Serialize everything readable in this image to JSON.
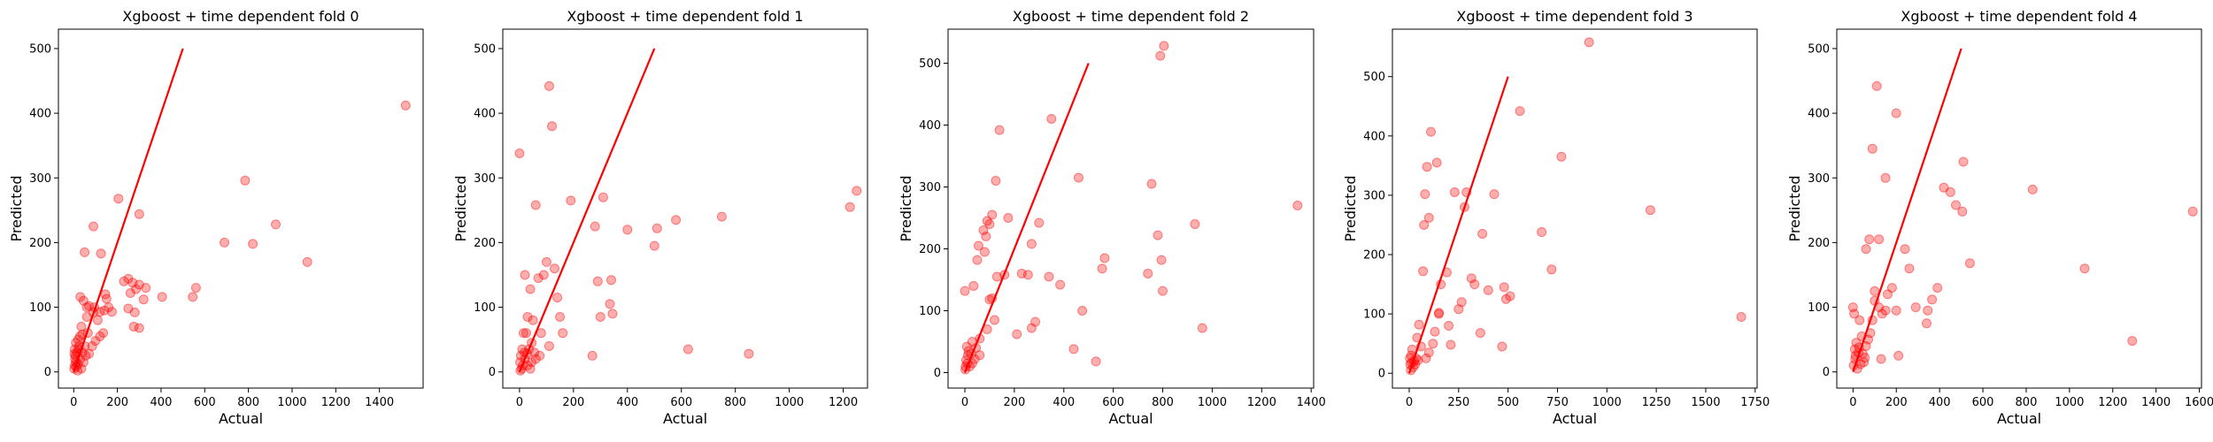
{
  "chart_data": [
    {
      "type": "scatter",
      "title": "Xgboost + time dependent fold 0",
      "xlabel": "Actual",
      "ylabel": "Predicted",
      "xlim": [
        -70,
        1600
      ],
      "ylim": [
        -25,
        530
      ],
      "xticks": [
        0,
        200,
        400,
        600,
        800,
        1000,
        1200,
        1400
      ],
      "yticks": [
        0,
        100,
        200,
        300,
        400,
        500
      ],
      "reference_line": {
        "from": [
          0,
          0
        ],
        "to": [
          500,
          500
        ],
        "color": "#ff0000"
      },
      "point_color": "#ff0000",
      "points": [
        [
          1520,
          412
        ],
        [
          785,
          296
        ],
        [
          925,
          228
        ],
        [
          1070,
          170
        ],
        [
          820,
          198
        ],
        [
          690,
          200
        ],
        [
          560,
          130
        ],
        [
          545,
          116
        ],
        [
          405,
          116
        ],
        [
          330,
          130
        ],
        [
          300,
          244
        ],
        [
          205,
          268
        ],
        [
          230,
          140
        ],
        [
          250,
          144
        ],
        [
          270,
          138
        ],
        [
          300,
          135
        ],
        [
          285,
          128
        ],
        [
          260,
          122
        ],
        [
          320,
          112
        ],
        [
          250,
          98
        ],
        [
          280,
          92
        ],
        [
          300,
          68
        ],
        [
          275,
          70
        ],
        [
          160,
          100
        ],
        [
          150,
          113
        ],
        [
          145,
          120
        ],
        [
          175,
          93
        ],
        [
          140,
          95
        ],
        [
          120,
          93
        ],
        [
          90,
          92
        ],
        [
          135,
          60
        ],
        [
          120,
          55
        ],
        [
          100,
          48
        ],
        [
          85,
          40
        ],
        [
          110,
          80
        ],
        [
          95,
          100
        ],
        [
          70,
          102
        ],
        [
          45,
          110
        ],
        [
          30,
          116
        ],
        [
          60,
          100
        ],
        [
          90,
          225
        ],
        [
          50,
          185
        ],
        [
          125,
          183
        ],
        [
          60,
          85
        ],
        [
          65,
          60
        ],
        [
          40,
          58
        ],
        [
          35,
          70
        ],
        [
          20,
          50
        ],
        [
          10,
          45
        ],
        [
          5,
          35
        ],
        [
          25,
          40
        ],
        [
          15,
          30
        ],
        [
          8,
          25
        ],
        [
          30,
          20
        ],
        [
          20,
          12
        ],
        [
          10,
          15
        ],
        [
          5,
          10
        ],
        [
          2,
          5
        ],
        [
          12,
          8
        ],
        [
          40,
          30
        ],
        [
          55,
          25
        ],
        [
          45,
          15
        ],
        [
          18,
          2
        ],
        [
          6,
          20
        ],
        [
          3,
          28
        ],
        [
          28,
          55
        ],
        [
          50,
          40
        ],
        [
          70,
          28
        ],
        [
          22,
          35
        ],
        [
          35,
          5
        ]
      ]
    },
    {
      "type": "scatter",
      "title": "Xgboost + time dependent fold 1",
      "xlabel": "Actual",
      "ylabel": "Predicted",
      "xlim": [
        -62,
        1290
      ],
      "ylim": [
        -25,
        530
      ],
      "xticks": [
        0,
        200,
        400,
        600,
        800,
        1000,
        1200
      ],
      "yticks": [
        0,
        100,
        200,
        300,
        400,
        500
      ],
      "reference_line": {
        "from": [
          0,
          0
        ],
        "to": [
          500,
          500
        ],
        "color": "#ff0000"
      },
      "point_color": "#ff0000",
      "points": [
        [
          1250,
          280
        ],
        [
          1225,
          255
        ],
        [
          850,
          28
        ],
        [
          750,
          240
        ],
        [
          625,
          35
        ],
        [
          580,
          235
        ],
        [
          510,
          222
        ],
        [
          500,
          195
        ],
        [
          400,
          220
        ],
        [
          340,
          142
        ],
        [
          335,
          105
        ],
        [
          345,
          90
        ],
        [
          310,
          270
        ],
        [
          280,
          225
        ],
        [
          290,
          140
        ],
        [
          300,
          85
        ],
        [
          270,
          25
        ],
        [
          190,
          265
        ],
        [
          140,
          115
        ],
        [
          130,
          160
        ],
        [
          120,
          380
        ],
        [
          110,
          442
        ],
        [
          60,
          258
        ],
        [
          0,
          338
        ],
        [
          150,
          85
        ],
        [
          160,
          60
        ],
        [
          100,
          170
        ],
        [
          90,
          150
        ],
        [
          70,
          145
        ],
        [
          50,
          80
        ],
        [
          80,
          60
        ],
        [
          110,
          40
        ],
        [
          20,
          150
        ],
        [
          40,
          128
        ],
        [
          30,
          85
        ],
        [
          15,
          60
        ],
        [
          25,
          60
        ],
        [
          45,
          45
        ],
        [
          60,
          20
        ],
        [
          75,
          25
        ],
        [
          35,
          35
        ],
        [
          10,
          35
        ],
        [
          5,
          25
        ],
        [
          20,
          20
        ],
        [
          12,
          10
        ],
        [
          8,
          5
        ],
        [
          30,
          10
        ],
        [
          45,
          15
        ],
        [
          2,
          15
        ],
        [
          18,
          30
        ],
        [
          28,
          28
        ],
        [
          55,
          30
        ],
        [
          3,
          2
        ],
        [
          40,
          5
        ]
      ]
    },
    {
      "type": "scatter",
      "title": "Xgboost + time dependent fold 2",
      "xlabel": "Actual",
      "ylabel": "Predicted",
      "xlim": [
        -68,
        1410
      ],
      "ylim": [
        -25,
        555
      ],
      "xticks": [
        0,
        200,
        400,
        600,
        800,
        1000,
        1200,
        1400
      ],
      "yticks": [
        0,
        100,
        200,
        300,
        400,
        500
      ],
      "reference_line": {
        "from": [
          0,
          0
        ],
        "to": [
          500,
          500
        ],
        "color": "#ff0000"
      },
      "point_color": "#ff0000",
      "points": [
        [
          1345,
          270
        ],
        [
          960,
          72
        ],
        [
          930,
          240
        ],
        [
          805,
          528
        ],
        [
          790,
          512
        ],
        [
          780,
          222
        ],
        [
          795,
          182
        ],
        [
          800,
          132
        ],
        [
          755,
          305
        ],
        [
          740,
          160
        ],
        [
          565,
          185
        ],
        [
          555,
          168
        ],
        [
          530,
          18
        ],
        [
          460,
          315
        ],
        [
          475,
          100
        ],
        [
          440,
          38
        ],
        [
          385,
          142
        ],
        [
          350,
          410
        ],
        [
          340,
          155
        ],
        [
          300,
          242
        ],
        [
          270,
          208
        ],
        [
          285,
          82
        ],
        [
          270,
          72
        ],
        [
          255,
          158
        ],
        [
          230,
          160
        ],
        [
          210,
          62
        ],
        [
          175,
          250
        ],
        [
          160,
          158
        ],
        [
          140,
          392
        ],
        [
          125,
          310
        ],
        [
          110,
          255
        ],
        [
          100,
          240
        ],
        [
          90,
          245
        ],
        [
          85,
          220
        ],
        [
          80,
          195
        ],
        [
          75,
          230
        ],
        [
          55,
          205
        ],
        [
          50,
          182
        ],
        [
          35,
          140
        ],
        [
          0,
          132
        ],
        [
          130,
          155
        ],
        [
          110,
          120
        ],
        [
          100,
          118
        ],
        [
          120,
          85
        ],
        [
          90,
          70
        ],
        [
          60,
          55
        ],
        [
          45,
          40
        ],
        [
          30,
          50
        ],
        [
          25,
          30
        ],
        [
          15,
          35
        ],
        [
          10,
          15
        ],
        [
          5,
          20
        ],
        [
          20,
          10
        ],
        [
          2,
          5
        ],
        [
          40,
          22
        ],
        [
          60,
          28
        ],
        [
          8,
          42
        ],
        [
          3,
          10
        ],
        [
          30,
          15
        ],
        [
          12,
          28
        ]
      ]
    },
    {
      "type": "scatter",
      "title": "Xgboost + time dependent fold 3",
      "xlabel": "Actual",
      "ylabel": "Predicted",
      "xlim": [
        -85,
        1760
      ],
      "ylim": [
        -25,
        580
      ],
      "xticks": [
        0,
        250,
        500,
        750,
        1000,
        1250,
        1500,
        1750
      ],
      "yticks": [
        0,
        100,
        200,
        300,
        400,
        500
      ],
      "reference_line": {
        "from": [
          0,
          0
        ],
        "to": [
          500,
          500
        ],
        "color": "#ff0000"
      },
      "point_color": "#ff0000",
      "points": [
        [
          1680,
          95
        ],
        [
          1220,
          275
        ],
        [
          910,
          558
        ],
        [
          770,
          365
        ],
        [
          720,
          175
        ],
        [
          670,
          238
        ],
        [
          560,
          442
        ],
        [
          510,
          130
        ],
        [
          490,
          125
        ],
        [
          480,
          145
        ],
        [
          470,
          45
        ],
        [
          430,
          302
        ],
        [
          400,
          140
        ],
        [
          370,
          235
        ],
        [
          360,
          68
        ],
        [
          330,
          150
        ],
        [
          315,
          160
        ],
        [
          290,
          305
        ],
        [
          280,
          280
        ],
        [
          265,
          120
        ],
        [
          250,
          108
        ],
        [
          230,
          305
        ],
        [
          210,
          48
        ],
        [
          200,
          80
        ],
        [
          190,
          170
        ],
        [
          160,
          150
        ],
        [
          150,
          102
        ],
        [
          140,
          355
        ],
        [
          110,
          407
        ],
        [
          100,
          262
        ],
        [
          90,
          348
        ],
        [
          80,
          302
        ],
        [
          75,
          250
        ],
        [
          70,
          172
        ],
        [
          150,
          100
        ],
        [
          130,
          70
        ],
        [
          120,
          50
        ],
        [
          100,
          35
        ],
        [
          85,
          25
        ],
        [
          60,
          45
        ],
        [
          50,
          82
        ],
        [
          40,
          60
        ],
        [
          35,
          25
        ],
        [
          25,
          20
        ],
        [
          15,
          40
        ],
        [
          10,
          30
        ],
        [
          5,
          15
        ],
        [
          20,
          10
        ],
        [
          8,
          5
        ],
        [
          3,
          25
        ],
        [
          30,
          15
        ],
        [
          45,
          22
        ],
        [
          12,
          18
        ]
      ]
    },
    {
      "type": "scatter",
      "title": "Xgboost + time dependent fold 4",
      "xlabel": "Actual",
      "ylabel": "Predicted",
      "xlim": [
        -75,
        1610
      ],
      "ylim": [
        -25,
        530
      ],
      "xticks": [
        0,
        200,
        400,
        600,
        800,
        1000,
        1200,
        1400,
        1600
      ],
      "yticks": [
        0,
        100,
        200,
        300,
        400,
        500
      ],
      "reference_line": {
        "from": [
          0,
          0
        ],
        "to": [
          500,
          500
        ],
        "color": "#ff0000"
      },
      "point_color": "#ff0000",
      "points": [
        [
          1570,
          248
        ],
        [
          1290,
          48
        ],
        [
          1070,
          160
        ],
        [
          830,
          282
        ],
        [
          540,
          168
        ],
        [
          510,
          325
        ],
        [
          505,
          248
        ],
        [
          475,
          258
        ],
        [
          450,
          278
        ],
        [
          420,
          285
        ],
        [
          390,
          130
        ],
        [
          365,
          112
        ],
        [
          345,
          95
        ],
        [
          340,
          75
        ],
        [
          290,
          100
        ],
        [
          260,
          160
        ],
        [
          240,
          190
        ],
        [
          200,
          400
        ],
        [
          150,
          300
        ],
        [
          120,
          205
        ],
        [
          110,
          442
        ],
        [
          100,
          125
        ],
        [
          90,
          345
        ],
        [
          75,
          205
        ],
        [
          60,
          190
        ],
        [
          180,
          130
        ],
        [
          160,
          120
        ],
        [
          150,
          95
        ],
        [
          135,
          90
        ],
        [
          200,
          95
        ],
        [
          210,
          25
        ],
        [
          130,
          20
        ],
        [
          120,
          100
        ],
        [
          100,
          110
        ],
        [
          90,
          80
        ],
        [
          80,
          60
        ],
        [
          70,
          50
        ],
        [
          60,
          40
        ],
        [
          0,
          100
        ],
        [
          5,
          90
        ],
        [
          30,
          80
        ],
        [
          40,
          55
        ],
        [
          25,
          30
        ],
        [
          15,
          45
        ],
        [
          10,
          20
        ],
        [
          50,
          15
        ],
        [
          20,
          5
        ],
        [
          8,
          35
        ],
        [
          35,
          12
        ],
        [
          45,
          28
        ],
        [
          3,
          10
        ],
        [
          12,
          25
        ],
        [
          28,
          38
        ],
        [
          55,
          22
        ]
      ]
    }
  ]
}
